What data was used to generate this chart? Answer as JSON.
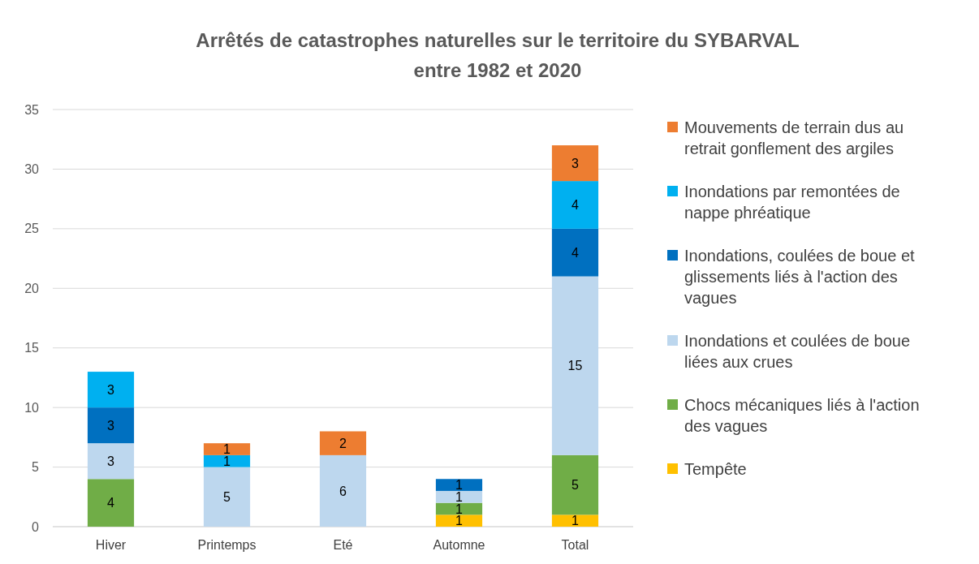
{
  "chart_data": {
    "type": "bar",
    "title": "Arrêtés de catastrophes naturelles sur le territoire du SYBARVAL\nentre 1982 et 2020",
    "categories": [
      "Hiver",
      "Printemps",
      "Eté",
      "Automne",
      "Total"
    ],
    "stacked": true,
    "data_labels": true,
    "grid": "y",
    "legend": "right",
    "ylim": [
      0,
      35
    ],
    "yticks": [
      0,
      5,
      10,
      15,
      20,
      25,
      30,
      35
    ],
    "series": [
      {
        "name": "Tempête",
        "color": "#ffc000",
        "values": [
          null,
          null,
          null,
          1,
          1
        ]
      },
      {
        "name": "Chocs mécaniques liés à l'action des vagues",
        "color": "#70ad47",
        "values": [
          4,
          null,
          null,
          1,
          5
        ]
      },
      {
        "name": "Inondations et coulées de boue liées aux crues",
        "color": "#bdd7ee",
        "values": [
          3,
          5,
          6,
          1,
          15
        ]
      },
      {
        "name": "Inondations, coulées de boue et glissements liés à l'action des vagues",
        "color": "#0070c0",
        "values": [
          3,
          null,
          null,
          1,
          4
        ]
      },
      {
        "name": "Inondations par remontées de nappe phréatique",
        "color": "#00b0f0",
        "values": [
          3,
          1,
          null,
          null,
          4
        ]
      },
      {
        "name": "Mouvements de terrain dus au retrait gonflement des argiles",
        "color": "#ed7d31",
        "values": [
          null,
          1,
          2,
          null,
          3
        ]
      }
    ]
  }
}
